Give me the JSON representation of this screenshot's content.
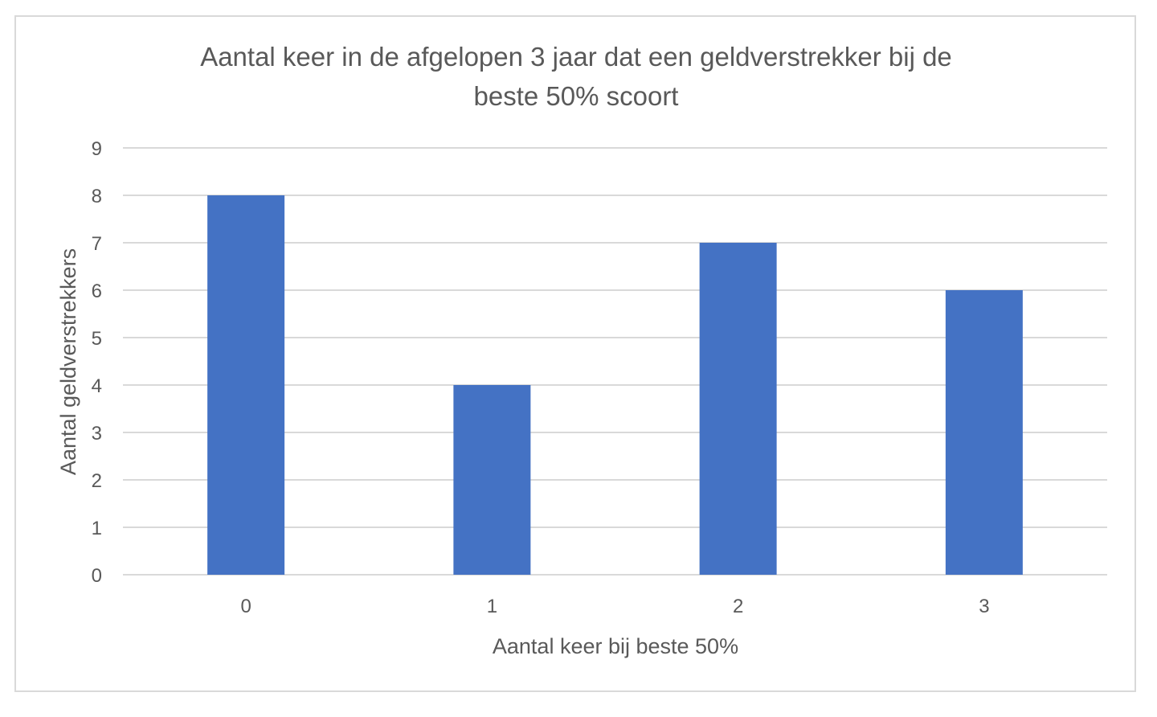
{
  "chart_data": {
    "type": "bar",
    "title_lines": [
      "Aantal keer in de afgelopen 3 jaar dat een geldverstrekker bij de",
      "beste 50% scoort"
    ],
    "xlabel": "Aantal keer bij beste 50%",
    "ylabel": "Aantal geldverstrekkers",
    "categories": [
      "0",
      "1",
      "2",
      "3"
    ],
    "values": [
      8,
      4,
      7,
      6
    ],
    "ylim": [
      0,
      9
    ],
    "yticks": [
      "0",
      "1",
      "2",
      "3",
      "4",
      "5",
      "6",
      "7",
      "8",
      "9"
    ],
    "bar_color": "#4472c4",
    "grid": true,
    "legend": "none"
  }
}
